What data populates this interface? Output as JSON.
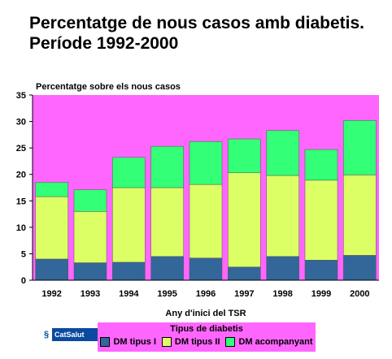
{
  "title_line1": "Percentatge de nous casos amb diabetis.",
  "title_line2": "Període 1992-2000",
  "logo_text": "CatSalut",
  "colors": {
    "plot_bg": "#ff66ff",
    "dm1": "#336699",
    "dm2": "#ddff66",
    "dmacc": "#33ff77"
  },
  "chart_data": {
    "type": "bar",
    "stacked": true,
    "ylabel": "Percentatge sobre els nous casos",
    "xlabel": "Any d'inici del TSR",
    "ylim": [
      0,
      35
    ],
    "yticks": [
      "0",
      "5",
      "10",
      "15",
      "20",
      "25",
      "30",
      "35"
    ],
    "categories": [
      "1992",
      "1993",
      "1994",
      "1995",
      "1996",
      "1997",
      "1998",
      "1999",
      "2000"
    ],
    "legend_title": "Tipus de diabetis",
    "legend_position": "bottom",
    "grid": false,
    "series": [
      {
        "name": "DM tipus I",
        "values": [
          4.0,
          3.3,
          3.4,
          4.5,
          4.2,
          2.5,
          4.5,
          3.8,
          4.7
        ]
      },
      {
        "name": "DM tipus II",
        "values": [
          11.8,
          9.7,
          14.1,
          13.0,
          13.9,
          17.8,
          15.3,
          15.1,
          15.2
        ]
      },
      {
        "name": "DM acompanyant",
        "values": [
          2.7,
          4.1,
          5.7,
          7.8,
          8.1,
          6.4,
          8.5,
          5.8,
          10.3
        ]
      }
    ]
  }
}
